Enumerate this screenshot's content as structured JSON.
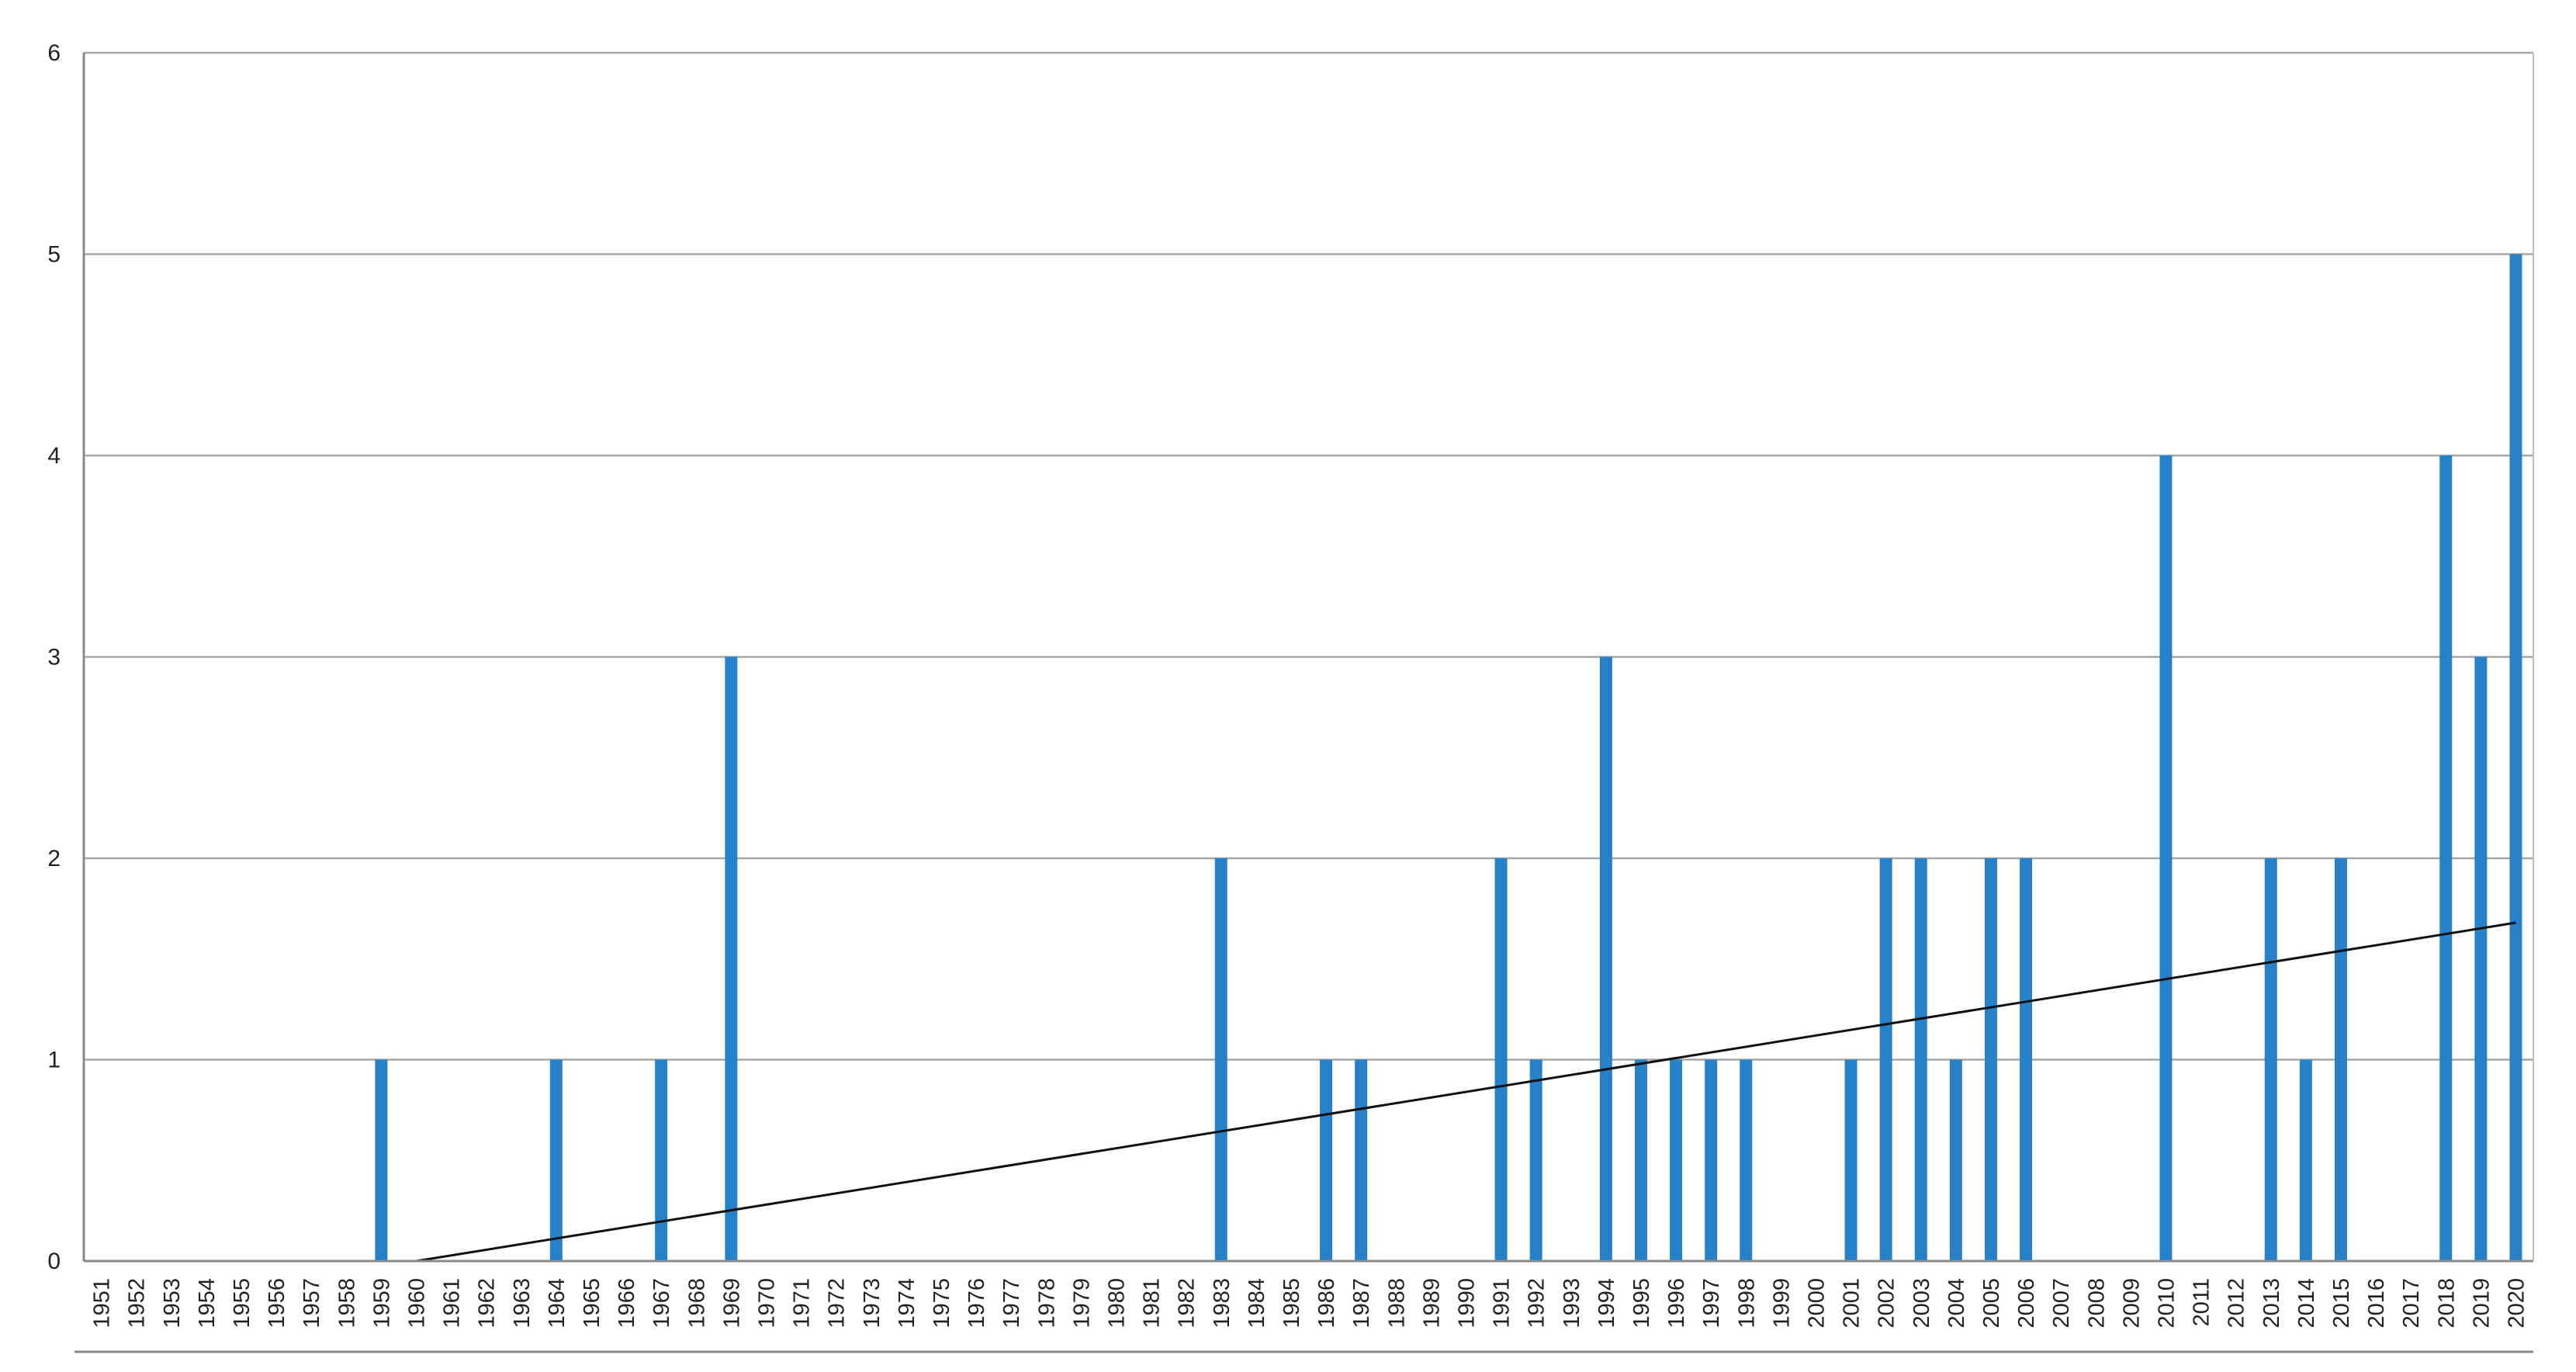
{
  "chart_data": {
    "type": "bar",
    "title": "",
    "xlabel": "",
    "ylabel": "",
    "ylim": [
      0,
      6
    ],
    "yticks": [
      0,
      1,
      2,
      3,
      4,
      5,
      6
    ],
    "grid": "horizontal",
    "legend": "none",
    "categories": [
      "1951",
      "1952",
      "1953",
      "1954",
      "1955",
      "1956",
      "1957",
      "1958",
      "1959",
      "1960",
      "1961",
      "1962",
      "1963",
      "1964",
      "1965",
      "1966",
      "1967",
      "1968",
      "1969",
      "1970",
      "1971",
      "1972",
      "1973",
      "1974",
      "1975",
      "1976",
      "1977",
      "1978",
      "1979",
      "1980",
      "1981",
      "1982",
      "1983",
      "1984",
      "1985",
      "1986",
      "1987",
      "1988",
      "1989",
      "1990",
      "1991",
      "1992",
      "1993",
      "1994",
      "1995",
      "1996",
      "1997",
      "1998",
      "1999",
      "2000",
      "2001",
      "2002",
      "2003",
      "2004",
      "2005",
      "2006",
      "2007",
      "2008",
      "2009",
      "2010",
      "2011",
      "2012",
      "2013",
      "2014",
      "2015",
      "2016",
      "2017",
      "2018",
      "2019",
      "2020"
    ],
    "values": [
      0,
      0,
      0,
      0,
      0,
      0,
      0,
      0,
      1,
      0,
      0,
      0,
      0,
      1,
      0,
      0,
      1,
      0,
      3,
      0,
      0,
      0,
      0,
      0,
      0,
      0,
      0,
      0,
      0,
      0,
      0,
      0,
      2,
      0,
      0,
      1,
      1,
      0,
      0,
      0,
      2,
      1,
      0,
      3,
      1,
      1,
      1,
      1,
      0,
      0,
      1,
      2,
      2,
      1,
      2,
      2,
      0,
      0,
      0,
      4,
      0,
      0,
      2,
      1,
      2,
      0,
      0,
      4,
      3,
      5
    ],
    "trendline": {
      "type": "linear",
      "start": {
        "x": "1960",
        "y": 0
      },
      "end": {
        "x": "2020",
        "y": 1.68
      }
    },
    "colors": {
      "bars": "#2681c9",
      "trendline": "#111111",
      "grid": "#a6a6a6",
      "axis": "#888888"
    }
  }
}
